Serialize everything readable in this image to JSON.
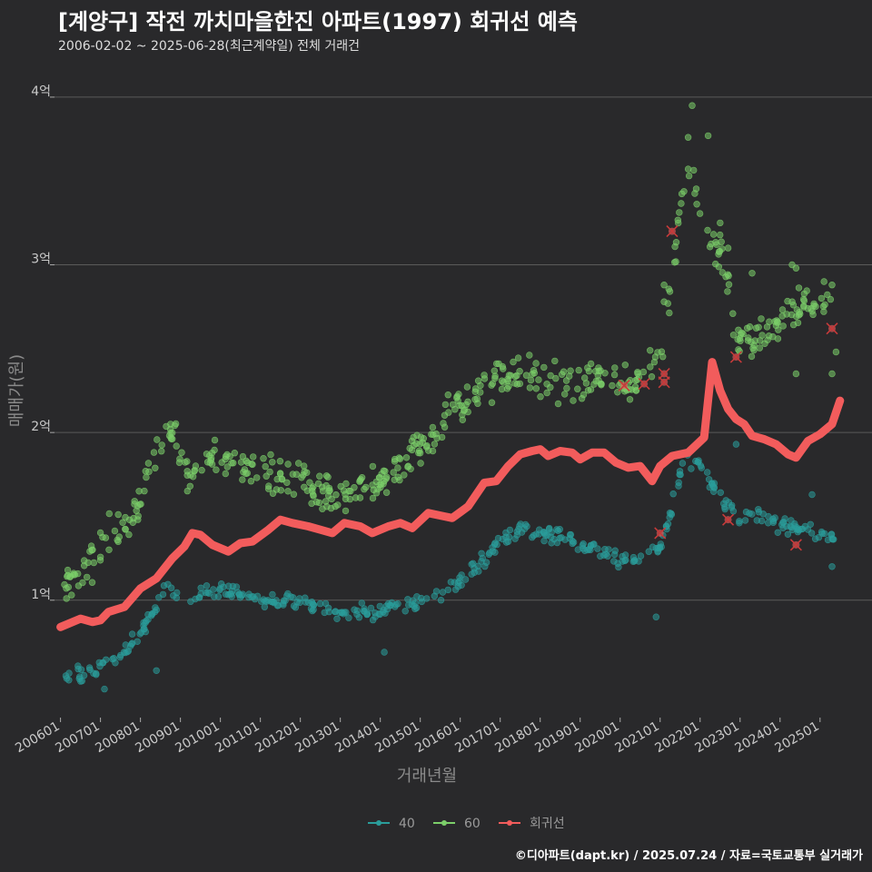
{
  "title": "[계양구] 작전 까치마을한진 아파트(1997) 회귀선 예측",
  "subtitle": "2006-02-02 ~ 2025-06-28(최근계약일) 전체 거래건",
  "footer": "©디아파트(dapt.kr) / 2025.07.24 / 자료=국토교통부 실거래가",
  "colors": {
    "background": "#29292b",
    "grid": "#5a5a5a",
    "series_40": "#2a9d9b",
    "series_60": "#7ccf6a",
    "regression": "#f25c5c",
    "outlier_mark": "#c83a3a"
  },
  "chart_data": {
    "type": "scatter",
    "title": "[계양구] 작전 까치마을한진 아파트(1997) 회귀선 예측",
    "xlabel": "거래년월",
    "ylabel": "매매가(원)",
    "xlim": [
      2005.85,
      2026.3
    ],
    "ylim": [
      0.3,
      4.2
    ],
    "y_unit": "억",
    "y_ticks": [
      {
        "value": 1,
        "label": "1억"
      },
      {
        "value": 2,
        "label": "2억"
      },
      {
        "value": 3,
        "label": "3억"
      },
      {
        "value": 4,
        "label": "4억"
      }
    ],
    "x_ticks": [
      "200601",
      "200701",
      "200801",
      "200901",
      "201001",
      "201101",
      "201201",
      "201301",
      "201401",
      "201501",
      "201601",
      "201701",
      "201801",
      "201901",
      "202001",
      "202101",
      "202201",
      "202301",
      "202401",
      "202501"
    ],
    "legend": [
      {
        "name": "40",
        "color": "#2a9d9b"
      },
      {
        "name": "60",
        "color": "#7ccf6a"
      },
      {
        "name": "회귀선",
        "color": "#f25c5c"
      }
    ],
    "legend_position": "bottom",
    "series": [
      {
        "name": "60",
        "trend": [
          [
            2006.1,
            1.08
          ],
          [
            2006.5,
            1.12
          ],
          [
            2006.9,
            1.28
          ],
          [
            2007.3,
            1.42
          ],
          [
            2007.7,
            1.47
          ],
          [
            2008.0,
            1.55
          ],
          [
            2008.3,
            1.85
          ],
          [
            2008.6,
            2.02
          ],
          [
            2008.9,
            1.97
          ],
          [
            2009.2,
            1.72
          ],
          [
            2009.6,
            1.82
          ],
          [
            2010.0,
            1.85
          ],
          [
            2010.5,
            1.8
          ],
          [
            2011.0,
            1.78
          ],
          [
            2011.5,
            1.74
          ],
          [
            2012.0,
            1.7
          ],
          [
            2012.5,
            1.66
          ],
          [
            2013.0,
            1.62
          ],
          [
            2013.5,
            1.7
          ],
          [
            2014.0,
            1.72
          ],
          [
            2014.5,
            1.82
          ],
          [
            2015.0,
            1.92
          ],
          [
            2015.5,
            2.08
          ],
          [
            2016.0,
            2.18
          ],
          [
            2016.5,
            2.22
          ],
          [
            2017.0,
            2.33
          ],
          [
            2017.5,
            2.34
          ],
          [
            2018.0,
            2.32
          ],
          [
            2018.5,
            2.3
          ],
          [
            2019.0,
            2.3
          ],
          [
            2019.5,
            2.28
          ],
          [
            2020.0,
            2.28
          ],
          [
            2020.5,
            2.32
          ],
          [
            2021.0,
            2.4
          ],
          [
            2021.3,
            2.9
          ],
          [
            2021.5,
            3.35
          ],
          [
            2021.7,
            3.55
          ],
          [
            2022.0,
            3.3
          ],
          [
            2022.5,
            3.05
          ],
          [
            2023.0,
            2.55
          ],
          [
            2023.5,
            2.55
          ],
          [
            2024.0,
            2.65
          ],
          [
            2024.5,
            2.75
          ],
          [
            2025.0,
            2.82
          ],
          [
            2025.4,
            2.72
          ]
        ],
        "extra": [
          [
            2021.8,
            3.95
          ],
          [
            2022.2,
            3.77
          ],
          [
            2021.7,
            3.76
          ],
          [
            2022.5,
            3.25
          ],
          [
            2022.7,
            3.1
          ],
          [
            2023.3,
            2.95
          ],
          [
            2024.3,
            3.0
          ],
          [
            2024.4,
            2.98
          ],
          [
            2025.1,
            2.9
          ],
          [
            2025.3,
            2.88
          ],
          [
            2020.4,
            2.25
          ],
          [
            2019.8,
            2.28
          ],
          [
            2021.1,
            2.88
          ],
          [
            2021.1,
            2.78
          ],
          [
            2024.4,
            2.35
          ],
          [
            2025.3,
            2.35
          ],
          [
            2025.4,
            2.48
          ]
        ],
        "spread": 0.14
      },
      {
        "name": "40",
        "trend": [
          [
            2006.1,
            0.53
          ],
          [
            2006.5,
            0.56
          ],
          [
            2006.9,
            0.6
          ],
          [
            2007.3,
            0.66
          ],
          [
            2007.7,
            0.72
          ],
          [
            2008.0,
            0.8
          ],
          [
            2008.3,
            0.92
          ],
          [
            2008.7,
            1.1
          ],
          [
            2009.2,
            0.98
          ],
          [
            2009.6,
            1.05
          ],
          [
            2010.0,
            1.06
          ],
          [
            2010.5,
            1.03
          ],
          [
            2011.0,
            1.0
          ],
          [
            2011.5,
            0.98
          ],
          [
            2012.0,
            1.0
          ],
          [
            2012.5,
            0.96
          ],
          [
            2013.0,
            0.94
          ],
          [
            2013.5,
            0.93
          ],
          [
            2014.0,
            0.94
          ],
          [
            2014.5,
            0.96
          ],
          [
            2015.0,
            0.98
          ],
          [
            2015.5,
            1.02
          ],
          [
            2016.0,
            1.12
          ],
          [
            2016.5,
            1.22
          ],
          [
            2017.0,
            1.35
          ],
          [
            2017.5,
            1.42
          ],
          [
            2018.0,
            1.4
          ],
          [
            2018.5,
            1.38
          ],
          [
            2019.0,
            1.32
          ],
          [
            2019.5,
            1.28
          ],
          [
            2020.0,
            1.24
          ],
          [
            2020.5,
            1.26
          ],
          [
            2021.0,
            1.32
          ],
          [
            2021.3,
            1.55
          ],
          [
            2021.6,
            1.85
          ],
          [
            2022.0,
            1.8
          ],
          [
            2022.5,
            1.62
          ],
          [
            2023.0,
            1.5
          ],
          [
            2023.5,
            1.52
          ],
          [
            2024.0,
            1.45
          ],
          [
            2024.5,
            1.42
          ],
          [
            2025.0,
            1.4
          ],
          [
            2025.4,
            1.35
          ]
        ],
        "extra": [
          [
            2007.1,
            0.47
          ],
          [
            2008.4,
            0.58
          ],
          [
            2014.1,
            0.69
          ],
          [
            2020.9,
            0.9
          ],
          [
            2025.3,
            1.2
          ],
          [
            2022.9,
            1.93
          ],
          [
            2024.8,
            1.63
          ]
        ],
        "spread": 0.06
      }
    ],
    "regression": [
      [
        2006.0,
        0.84
      ],
      [
        2006.5,
        0.89
      ],
      [
        2006.8,
        0.87
      ],
      [
        2007.0,
        0.88
      ],
      [
        2007.2,
        0.93
      ],
      [
        2007.6,
        0.96
      ],
      [
        2008.0,
        1.07
      ],
      [
        2008.4,
        1.13
      ],
      [
        2008.8,
        1.25
      ],
      [
        2009.1,
        1.32
      ],
      [
        2009.3,
        1.4
      ],
      [
        2009.5,
        1.39
      ],
      [
        2009.8,
        1.33
      ],
      [
        2010.2,
        1.29
      ],
      [
        2010.5,
        1.34
      ],
      [
        2010.8,
        1.35
      ],
      [
        2011.2,
        1.42
      ],
      [
        2011.5,
        1.48
      ],
      [
        2011.8,
        1.46
      ],
      [
        2012.2,
        1.44
      ],
      [
        2012.5,
        1.42
      ],
      [
        2012.8,
        1.4
      ],
      [
        2013.1,
        1.46
      ],
      [
        2013.5,
        1.44
      ],
      [
        2013.8,
        1.4
      ],
      [
        2014.2,
        1.44
      ],
      [
        2014.5,
        1.46
      ],
      [
        2014.8,
        1.43
      ],
      [
        2015.2,
        1.52
      ],
      [
        2015.6,
        1.5
      ],
      [
        2015.8,
        1.49
      ],
      [
        2016.2,
        1.56
      ],
      [
        2016.6,
        1.7
      ],
      [
        2016.9,
        1.71
      ],
      [
        2017.2,
        1.8
      ],
      [
        2017.5,
        1.87
      ],
      [
        2017.8,
        1.89
      ],
      [
        2018.0,
        1.9
      ],
      [
        2018.2,
        1.86
      ],
      [
        2018.5,
        1.89
      ],
      [
        2018.8,
        1.88
      ],
      [
        2019.0,
        1.84
      ],
      [
        2019.3,
        1.88
      ],
      [
        2019.6,
        1.88
      ],
      [
        2019.9,
        1.82
      ],
      [
        2020.2,
        1.79
      ],
      [
        2020.5,
        1.8
      ],
      [
        2020.8,
        1.71
      ],
      [
        2021.0,
        1.8
      ],
      [
        2021.3,
        1.86
      ],
      [
        2021.7,
        1.88
      ],
      [
        2022.1,
        1.97
      ],
      [
        2022.3,
        2.42
      ],
      [
        2022.5,
        2.25
      ],
      [
        2022.7,
        2.14
      ],
      [
        2022.9,
        2.08
      ],
      [
        2023.1,
        2.05
      ],
      [
        2023.3,
        1.98
      ],
      [
        2023.6,
        1.96
      ],
      [
        2023.9,
        1.93
      ],
      [
        2024.2,
        1.87
      ],
      [
        2024.4,
        1.85
      ],
      [
        2024.7,
        1.95
      ],
      [
        2025.0,
        1.99
      ],
      [
        2025.3,
        2.05
      ],
      [
        2025.5,
        2.19
      ]
    ],
    "outliers": [
      [
        2020.1,
        2.28
      ],
      [
        2020.6,
        2.29
      ],
      [
        2021.1,
        2.35
      ],
      [
        2021.1,
        2.3
      ],
      [
        2021.3,
        3.2
      ],
      [
        2022.9,
        2.45
      ],
      [
        2021.0,
        1.4
      ],
      [
        2022.7,
        1.48
      ],
      [
        2024.4,
        1.33
      ],
      [
        2025.3,
        2.62
      ]
    ]
  }
}
